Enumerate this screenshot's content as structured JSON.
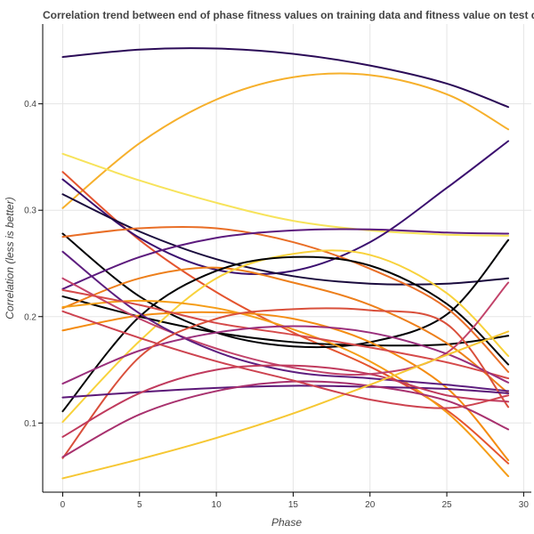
{
  "chart_data": {
    "type": "line",
    "title": "Correlation trend between end of phase fitness values on training data and fitness value on test data",
    "xlabel": "Phase",
    "ylabel": "Correlation (less is better)",
    "xlim": [
      -1.3,
      30.5
    ],
    "ylim": [
      0.035,
      0.475
    ],
    "xticks": [
      0,
      5,
      10,
      15,
      20,
      25,
      30
    ],
    "yticks": [
      0.1,
      0.2,
      0.3,
      0.4
    ],
    "grid": true,
    "x": [
      0,
      5,
      10,
      15,
      20,
      25,
      29
    ],
    "series": [
      {
        "color": "#2b0b57",
        "values": [
          0.444,
          0.451,
          0.452,
          0.447,
          0.436,
          0.419,
          0.397
        ]
      },
      {
        "color": "#f6b02c",
        "values": [
          0.302,
          0.363,
          0.404,
          0.425,
          0.427,
          0.409,
          0.376
        ]
      },
      {
        "color": "#f7e35b",
        "values": [
          0.353,
          0.328,
          0.307,
          0.29,
          0.281,
          0.277,
          0.276
        ]
      },
      {
        "color": "#e4542f",
        "values": [
          0.336,
          0.272,
          0.223,
          0.185,
          0.153,
          0.112,
          0.062
        ]
      },
      {
        "color": "#3b0f6f",
        "values": [
          0.329,
          0.274,
          0.244,
          0.243,
          0.27,
          0.321,
          0.365
        ]
      },
      {
        "color": "#1a0b3d",
        "values": [
          0.315,
          0.28,
          0.254,
          0.238,
          0.231,
          0.231,
          0.236
        ]
      },
      {
        "color": "#000004",
        "values": [
          0.278,
          0.219,
          0.185,
          0.172,
          0.176,
          0.202,
          0.272
        ]
      },
      {
        "color": "#e96e26",
        "values": [
          0.275,
          0.283,
          0.283,
          0.27,
          0.245,
          0.208,
          0.148
        ]
      },
      {
        "color": "#000000",
        "values": [
          0.219,
          0.2,
          0.185,
          0.176,
          0.173,
          0.174,
          0.182
        ]
      },
      {
        "color": "#5c1a7d",
        "values": [
          0.226,
          0.256,
          0.274,
          0.281,
          0.282,
          0.279,
          0.278
        ]
      },
      {
        "color": "#ed7f1b",
        "values": [
          0.208,
          0.236,
          0.246,
          0.232,
          0.211,
          0.175,
          0.128
        ]
      },
      {
        "color": "#f8d23c",
        "values": [
          0.101,
          0.177,
          0.236,
          0.259,
          0.258,
          0.222,
          0.163
        ]
      },
      {
        "color": "#f48c12",
        "values": [
          0.187,
          0.201,
          0.204,
          0.198,
          0.176,
          0.133,
          0.065
        ]
      },
      {
        "color": "#000000",
        "values": [
          0.111,
          0.2,
          0.243,
          0.256,
          0.248,
          0.212,
          0.155
        ]
      },
      {
        "color": "#f59d17",
        "values": [
          0.209,
          0.215,
          0.208,
          0.188,
          0.158,
          0.11,
          0.05
        ]
      },
      {
        "color": "#c2436a",
        "values": [
          0.236,
          0.198,
          0.17,
          0.152,
          0.146,
          0.166,
          0.232
        ]
      },
      {
        "color": "#5d1e7f",
        "values": [
          0.261,
          0.203,
          0.167,
          0.148,
          0.142,
          0.136,
          0.13
        ]
      },
      {
        "color": "#d54a4a",
        "values": [
          0.225,
          0.211,
          0.194,
          0.183,
          0.171,
          0.157,
          0.142
        ]
      },
      {
        "color": "#9a2f7c",
        "values": [
          0.137,
          0.168,
          0.185,
          0.191,
          0.185,
          0.165,
          0.138
        ]
      },
      {
        "color": "#d94f3b",
        "values": [
          0.067,
          0.162,
          0.198,
          0.207,
          0.206,
          0.193,
          0.115
        ]
      },
      {
        "color": "#5b1777",
        "values": [
          0.124,
          0.129,
          0.133,
          0.135,
          0.134,
          0.132,
          0.128
        ]
      },
      {
        "color": "#c03a5d",
        "values": [
          0.087,
          0.128,
          0.15,
          0.154,
          0.146,
          0.126,
          0.12
        ]
      },
      {
        "color": "#a8316e",
        "values": [
          0.068,
          0.108,
          0.13,
          0.139,
          0.135,
          0.121,
          0.094
        ]
      },
      {
        "color": "#f6c733",
        "values": [
          0.048,
          0.066,
          0.086,
          0.109,
          0.136,
          0.164,
          0.186
        ]
      },
      {
        "color": "#cd4350",
        "values": [
          0.205,
          0.18,
          0.158,
          0.14,
          0.122,
          0.114,
          0.126
        ]
      }
    ]
  }
}
